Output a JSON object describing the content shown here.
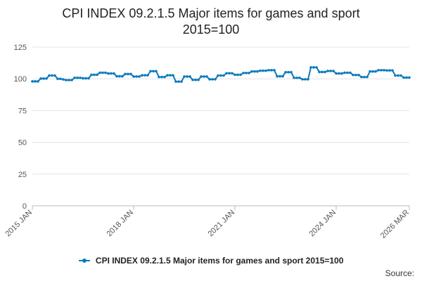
{
  "chart_data": {
    "type": "line",
    "title": "CPI INDEX 09.2.1.5 Major items for games and sport",
    "subtitle": "2015=100",
    "xlabel": "",
    "ylabel": "",
    "ylim": [
      0,
      125
    ],
    "yticks": [
      0,
      25,
      50,
      75,
      100,
      125
    ],
    "xlim": [
      "2015-01",
      "2026-03"
    ],
    "xtick_labels": [
      {
        "date": "2015-01",
        "label": "2015 JAN"
      },
      {
        "date": "2018-01",
        "label": "2018 JAN"
      },
      {
        "date": "2021-01",
        "label": "2021 JAN"
      },
      {
        "date": "2024-01",
        "label": "2024 JAN"
      },
      {
        "date": "2026-03",
        "label": "2026 MAR"
      }
    ],
    "grid": "horizontal",
    "legend": "bottom",
    "series": [
      {
        "name": "CPI INDEX 09.2.1.5 Major items for games and sport 2015=100",
        "color": "#0b7bbd",
        "x": [
          "2015-01",
          "2015-02",
          "2015-03",
          "2015-04",
          "2015-05",
          "2015-06",
          "2015-07",
          "2015-08",
          "2015-09",
          "2015-10",
          "2015-11",
          "2015-12",
          "2016-01",
          "2016-02",
          "2016-03",
          "2016-04",
          "2016-05",
          "2016-06",
          "2016-07",
          "2016-08",
          "2016-09",
          "2016-10",
          "2016-11",
          "2016-12",
          "2017-01",
          "2017-02",
          "2017-03",
          "2017-04",
          "2017-05",
          "2017-06",
          "2017-07",
          "2017-08",
          "2017-09",
          "2017-10",
          "2017-11",
          "2017-12",
          "2018-01",
          "2018-02",
          "2018-03",
          "2018-04",
          "2018-05",
          "2018-06",
          "2018-07",
          "2018-08",
          "2018-09",
          "2018-10",
          "2018-11",
          "2018-12",
          "2019-01",
          "2019-02",
          "2019-03",
          "2019-04",
          "2019-05",
          "2019-06",
          "2019-07",
          "2019-08",
          "2019-09",
          "2019-10",
          "2019-11",
          "2019-12",
          "2020-01",
          "2020-02",
          "2020-03",
          "2020-04",
          "2020-05",
          "2020-06",
          "2020-07",
          "2020-08",
          "2020-09",
          "2020-10",
          "2020-11",
          "2020-12",
          "2021-01",
          "2021-02",
          "2021-03",
          "2021-04",
          "2021-05",
          "2021-06",
          "2021-07",
          "2021-08",
          "2021-09",
          "2021-10",
          "2021-11",
          "2021-12",
          "2022-01",
          "2022-02",
          "2022-03",
          "2022-04",
          "2022-05",
          "2022-06",
          "2022-07",
          "2022-08",
          "2022-09",
          "2022-10",
          "2022-11",
          "2022-12",
          "2023-01",
          "2023-02",
          "2023-03",
          "2023-04",
          "2023-05",
          "2023-06",
          "2023-07",
          "2023-08",
          "2023-09",
          "2023-10",
          "2023-11",
          "2023-12",
          "2024-01",
          "2024-02",
          "2024-03",
          "2024-04",
          "2024-05",
          "2024-06",
          "2024-07",
          "2024-08",
          "2024-09",
          "2024-10",
          "2024-11",
          "2024-12",
          "2025-01",
          "2025-02",
          "2025-03",
          "2025-04",
          "2025-05",
          "2025-06",
          "2025-07",
          "2025-08",
          "2025-09",
          "2025-10",
          "2025-11",
          "2025-12",
          "2026-01",
          "2026-02",
          "2026-03"
        ],
        "values": [
          98.0,
          98.0,
          98.0,
          100.2,
          100.2,
          100.2,
          102.6,
          102.6,
          102.6,
          100.0,
          100.0,
          99.5,
          99.0,
          99.0,
          99.0,
          100.8,
          100.8,
          100.8,
          100.4,
          100.4,
          100.4,
          103.2,
          103.2,
          103.2,
          104.8,
          104.8,
          104.8,
          104.2,
          104.2,
          104.2,
          102.0,
          102.0,
          102.0,
          103.8,
          103.8,
          103.8,
          101.8,
          101.8,
          101.8,
          102.8,
          102.8,
          102.8,
          106.0,
          106.0,
          106.0,
          101.4,
          101.4,
          101.4,
          102.8,
          102.8,
          102.8,
          97.8,
          97.8,
          97.8,
          101.8,
          101.8,
          101.8,
          99.2,
          99.2,
          99.2,
          101.8,
          101.8,
          101.8,
          99.6,
          99.6,
          99.6,
          102.6,
          102.6,
          102.6,
          104.4,
          104.4,
          104.4,
          103.2,
          103.2,
          103.2,
          104.6,
          104.6,
          104.6,
          105.8,
          105.8,
          105.8,
          106.4,
          106.4,
          106.4,
          106.8,
          106.8,
          106.8,
          102.0,
          102.0,
          102.0,
          105.2,
          105.2,
          105.2,
          100.8,
          100.8,
          100.8,
          99.6,
          99.6,
          99.6,
          109.0,
          109.0,
          109.0,
          105.4,
          105.4,
          105.4,
          106.2,
          106.2,
          106.2,
          104.2,
          104.2,
          104.2,
          104.8,
          104.8,
          104.8,
          103.0,
          103.0,
          103.0,
          101.4,
          101.4,
          101.4,
          105.8,
          105.8,
          105.8,
          106.8,
          106.8,
          106.8,
          106.6,
          106.6,
          106.6,
          102.6,
          102.6,
          102.6,
          101.0,
          101.0,
          101.0
        ]
      }
    ]
  },
  "footer": {
    "source_label": "Source:"
  }
}
